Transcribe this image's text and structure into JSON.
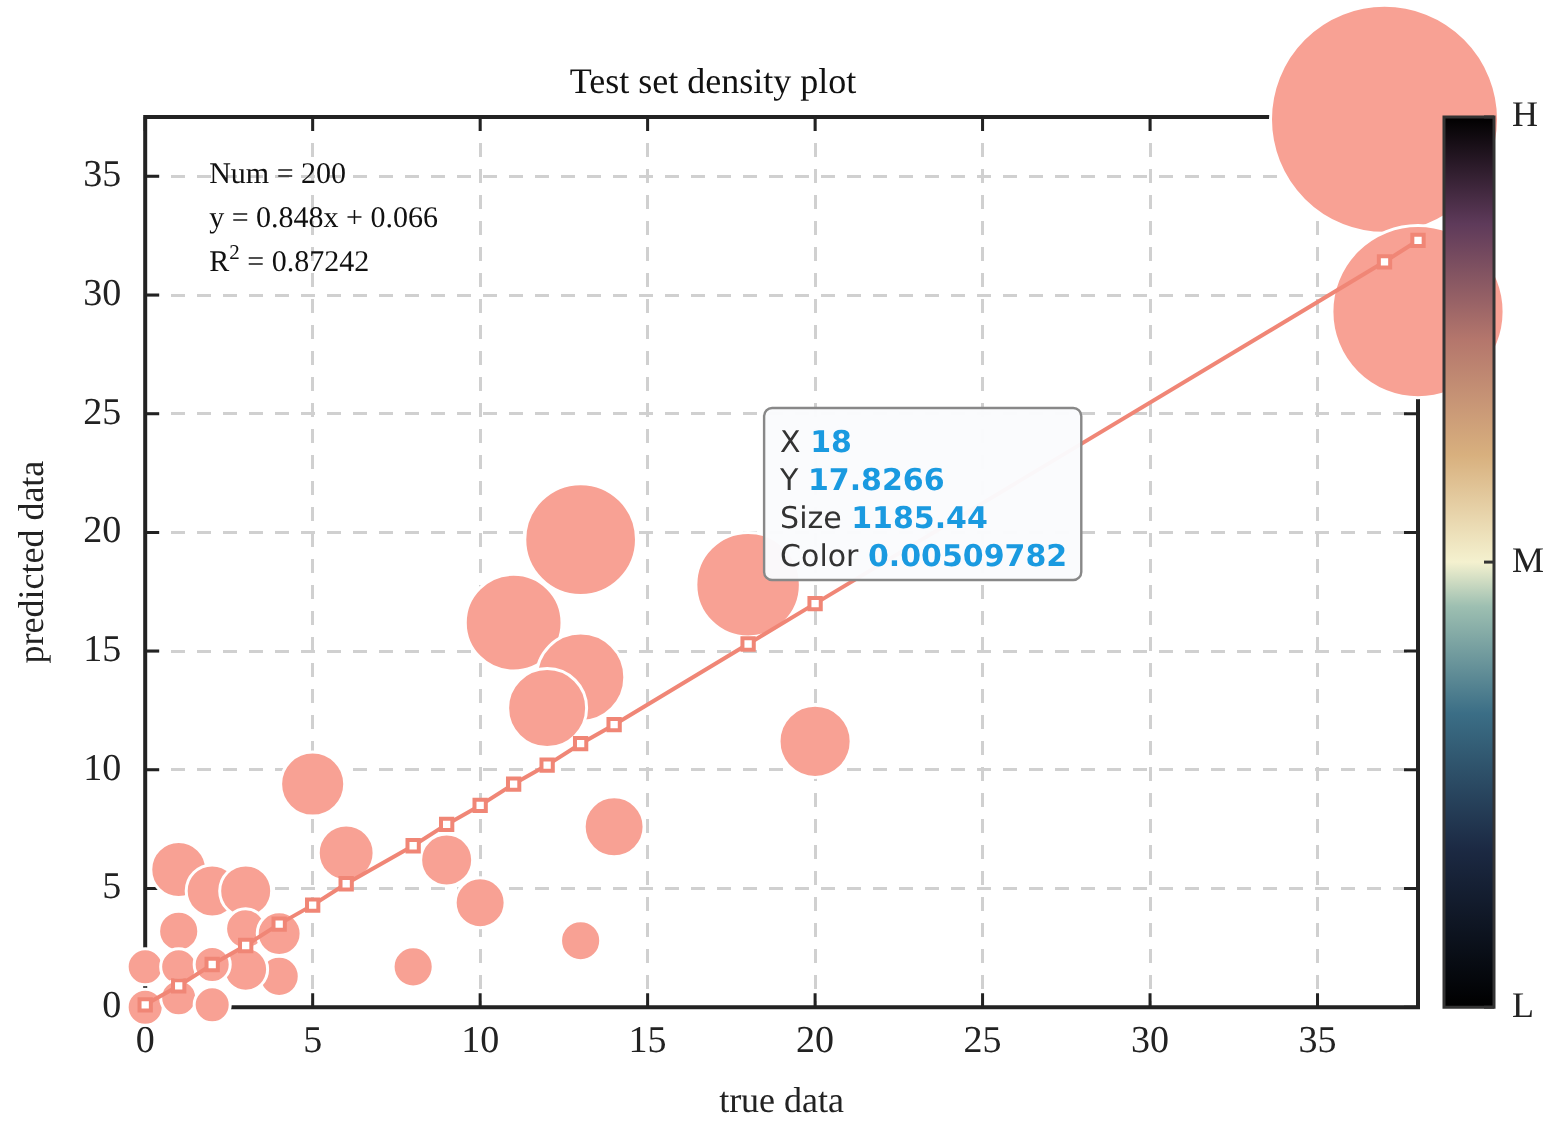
{
  "chart_data": {
    "type": "bubble",
    "title": "Test set density plot",
    "xlabel": "true data",
    "ylabel": "predicted data",
    "xlim": [
      0,
      38
    ],
    "ylim": [
      0,
      37.5
    ],
    "xticks": [
      0,
      5,
      10,
      15,
      20,
      25,
      30,
      35
    ],
    "yticks": [
      0,
      5,
      10,
      15,
      20,
      25,
      30,
      35
    ],
    "grid": true,
    "legend": false,
    "clim": [
      0,
      1
    ],
    "cticks": [
      {
        "value": 0,
        "label": "L"
      },
      {
        "value": 0.5,
        "label": "M"
      },
      {
        "value": 1,
        "label": "H"
      }
    ],
    "series": [
      {
        "color": "#f8a194",
        "x": [
          37,
          38,
          13,
          18,
          11,
          13,
          12,
          20,
          14,
          5,
          6,
          9,
          10,
          13,
          8,
          1,
          2,
          3,
          1,
          3,
          4,
          4,
          3,
          0,
          1,
          2,
          0,
          1,
          2
        ],
        "values": [
          37.4,
          29.3,
          19.7,
          17.8,
          16.2,
          13.9,
          12.6,
          11.2,
          7.6,
          9.4,
          6.5,
          6.2,
          4.4,
          2.8,
          1.7,
          5.8,
          4.9,
          4.9,
          3.2,
          3.3,
          3.1,
          1.3,
          1.6,
          1.7,
          1.7,
          1.8,
          0,
          0.4,
          0.1
        ],
        "sizes": [
          1,
          0.57,
          0.24,
          0.21,
          0.18,
          0.15,
          0.12,
          0.1,
          0.069,
          0.079,
          0.06,
          0.052,
          0.048,
          0.031,
          0.031,
          0.06,
          0.052,
          0.052,
          0.031,
          0.031,
          0.037,
          0.031,
          0.037,
          0.025,
          0.025,
          0.025,
          0.025,
          0.025,
          0.025
        ]
      },
      {
        "type": "line",
        "color": "#f08676",
        "marker": "square",
        "x": [
          0,
          1,
          2,
          3,
          4,
          5,
          6,
          8,
          9,
          10,
          11,
          12,
          13,
          14,
          18,
          20,
          37,
          38
        ],
        "values": [
          0.1,
          0.9,
          1.8,
          2.6,
          3.5,
          4.3,
          5.2,
          6.8,
          7.7,
          8.5,
          9.4,
          10.2,
          11.1,
          11.9,
          15.3,
          17.0,
          31.4,
          32.3
        ]
      }
    ],
    "annotations": [
      "Num = 200",
      "y = 0.848x + 0.066",
      "R$^{2}$ = 0.87242",
      {
        "text": "X 18\nY 17.8266\nSize 1185.44\nColor 0.00509782",
        "x": 18,
        "y": 17.8266
      }
    ]
  }
}
